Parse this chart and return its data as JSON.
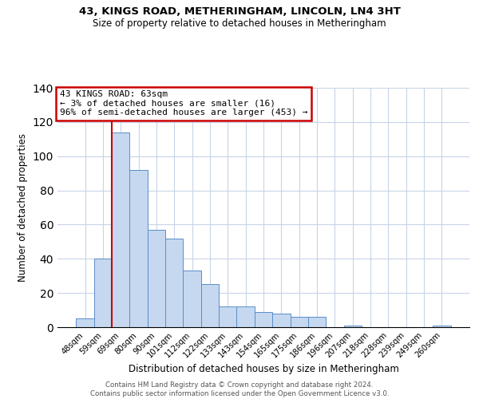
{
  "title": "43, KINGS ROAD, METHERINGHAM, LINCOLN, LN4 3HT",
  "subtitle": "Size of property relative to detached houses in Metheringham",
  "xlabel": "Distribution of detached houses by size in Metheringham",
  "ylabel": "Number of detached properties",
  "bar_labels": [
    "48sqm",
    "59sqm",
    "69sqm",
    "80sqm",
    "90sqm",
    "101sqm",
    "112sqm",
    "122sqm",
    "133sqm",
    "143sqm",
    "154sqm",
    "165sqm",
    "175sqm",
    "186sqm",
    "196sqm",
    "207sqm",
    "218sqm",
    "228sqm",
    "239sqm",
    "249sqm",
    "260sqm"
  ],
  "bar_values": [
    5,
    40,
    114,
    92,
    57,
    52,
    33,
    25,
    12,
    12,
    9,
    8,
    6,
    6,
    0,
    1,
    0,
    0,
    0,
    0,
    1
  ],
  "bar_color": "#c5d8f0",
  "bar_edge_color": "#5b8dc8",
  "ylim": [
    0,
    140
  ],
  "yticks": [
    0,
    20,
    40,
    60,
    80,
    100,
    120,
    140
  ],
  "vline_x_idx": 1.5,
  "vline_color": "#cc0000",
  "annotation_title": "43 KINGS ROAD: 63sqm",
  "annotation_line1": "← 3% of detached houses are smaller (16)",
  "annotation_line2": "96% of semi-detached houses are larger (453) →",
  "annotation_box_color": "#cc0000",
  "footer_line1": "Contains HM Land Registry data © Crown copyright and database right 2024.",
  "footer_line2": "Contains public sector information licensed under the Open Government Licence v3.0.",
  "bg_color": "#ffffff",
  "grid_color": "#c8d4e8"
}
